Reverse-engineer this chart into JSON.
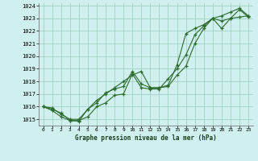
{
  "title": "Graphe pression niveau de la mer (hPa)",
  "background_color": "#cff0ee",
  "grid_color": "#99ccbb",
  "line_color": "#2d6a2d",
  "marker_color": "#2d6a2d",
  "xlabel": "Graphe pression niveau de la mer (hPa)",
  "ylim": [
    1014.5,
    1024.2
  ],
  "yticks": [
    1015,
    1016,
    1017,
    1018,
    1019,
    1020,
    1021,
    1022,
    1023,
    1024
  ],
  "xlim": [
    -0.5,
    23.5
  ],
  "xticks": [
    0,
    1,
    2,
    3,
    4,
    5,
    6,
    7,
    8,
    9,
    10,
    11,
    12,
    13,
    14,
    15,
    16,
    17,
    18,
    19,
    20,
    21,
    22,
    23
  ],
  "line1": [
    1016.0,
    1015.8,
    1015.5,
    1014.9,
    1014.85,
    1015.8,
    1016.3,
    1017.1,
    1017.4,
    1017.6,
    1018.8,
    1017.8,
    1017.5,
    1017.5,
    1017.7,
    1019.3,
    1021.8,
    1022.2,
    1022.5,
    1023.0,
    1023.2,
    1023.5,
    1023.8,
    1023.2
  ],
  "line2": [
    1016.0,
    1015.7,
    1015.2,
    1014.9,
    1014.9,
    1015.2,
    1016.0,
    1016.3,
    1016.9,
    1017.0,
    1018.6,
    1017.5,
    1017.4,
    1017.4,
    1018.2,
    1019.0,
    1020.1,
    1021.7,
    1022.4,
    1023.0,
    1022.2,
    1023.0,
    1023.7,
    1023.1
  ],
  "line3": [
    1016.0,
    1015.9,
    1015.4,
    1015.0,
    1015.0,
    1015.8,
    1016.5,
    1017.0,
    1017.5,
    1018.0,
    1018.5,
    1018.8,
    1017.5,
    1017.5,
    1017.6,
    1018.5,
    1019.2,
    1021.0,
    1022.2,
    1023.0,
    1022.8,
    1023.0,
    1023.1,
    1023.2
  ]
}
